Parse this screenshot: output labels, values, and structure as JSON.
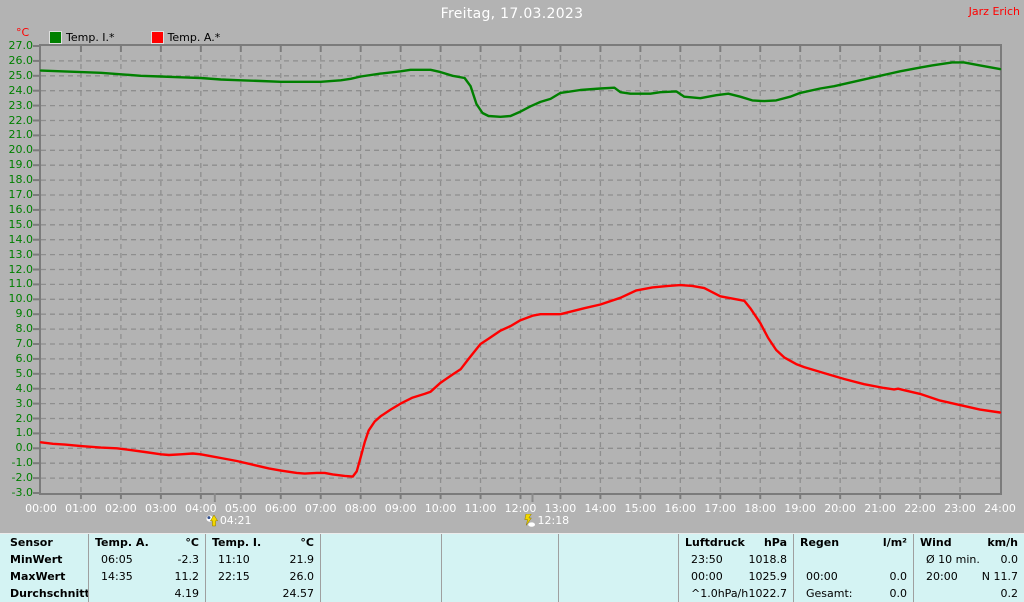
{
  "header": {
    "title": "Freitag, 17.03.2023",
    "user": "Jarz Erich"
  },
  "legend": {
    "axis_unit": "°C",
    "items": [
      {
        "label": "Temp. I.*",
        "color": "#008000"
      },
      {
        "label": "Temp. A.*",
        "color": "#ff0000"
      }
    ]
  },
  "chart_data": {
    "type": "line",
    "title": "Freitag, 17.03.2023",
    "ylabel": "°C",
    "ylim": [
      -3,
      27
    ],
    "ytick_step": 1.0,
    "xlim_hours": [
      0,
      24
    ],
    "grid": "dashed",
    "legend_position": "top-left",
    "y_tick_labels": [
      "27.0",
      "26.0",
      "25.0",
      "24.0",
      "23.0",
      "22.0",
      "21.0",
      "20.0",
      "19.0",
      "18.0",
      "17.0",
      "16.0",
      "15.0",
      "14.0",
      "13.0",
      "12.0",
      "11.0",
      "10.0",
      "9.0",
      "8.0",
      "7.0",
      "6.0",
      "5.0",
      "4.0",
      "3.0",
      "2.0",
      "1.0",
      "0.0",
      "-1.0",
      "-2.0",
      "-3.0"
    ],
    "x_tick_labels": [
      "00:00",
      "01:00",
      "02:00",
      "03:00",
      "04:00",
      "05:00",
      "06:00",
      "07:00",
      "08:00",
      "09:00",
      "10:00",
      "11:00",
      "12:00",
      "13:00",
      "14:00",
      "15:00",
      "16:00",
      "17:00",
      "18:00",
      "19:00",
      "20:00",
      "21:00",
      "22:00",
      "23:00",
      "24:00"
    ],
    "time_markers": [
      {
        "label": "04:21",
        "hour": 4.35
      },
      {
        "label": "12:18",
        "hour": 12.3
      }
    ],
    "series": [
      {
        "name": "Temp. I.*",
        "color": "#008000",
        "points": [
          [
            0,
            25.35
          ],
          [
            0.5,
            25.3
          ],
          [
            1,
            25.25
          ],
          [
            1.5,
            25.2
          ],
          [
            2,
            25.1
          ],
          [
            2.5,
            25.0
          ],
          [
            3,
            24.95
          ],
          [
            3.5,
            24.9
          ],
          [
            4,
            24.85
          ],
          [
            4.5,
            24.75
          ],
          [
            5,
            24.7
          ],
          [
            5.5,
            24.65
          ],
          [
            6,
            24.6
          ],
          [
            6.5,
            24.6
          ],
          [
            7,
            24.6
          ],
          [
            7.5,
            24.7
          ],
          [
            7.75,
            24.8
          ],
          [
            8,
            24.95
          ],
          [
            8.5,
            25.15
          ],
          [
            9,
            25.3
          ],
          [
            9.25,
            25.4
          ],
          [
            9.75,
            25.4
          ],
          [
            10,
            25.25
          ],
          [
            10.3,
            25.0
          ],
          [
            10.6,
            24.85
          ],
          [
            10.75,
            24.3
          ],
          [
            10.9,
            23.1
          ],
          [
            11.05,
            22.5
          ],
          [
            11.2,
            22.3
          ],
          [
            11.5,
            22.25
          ],
          [
            11.75,
            22.3
          ],
          [
            12,
            22.6
          ],
          [
            12.25,
            22.95
          ],
          [
            12.5,
            23.25
          ],
          [
            12.75,
            23.45
          ],
          [
            13,
            23.85
          ],
          [
            13.5,
            24.05
          ],
          [
            14,
            24.15
          ],
          [
            14.35,
            24.2
          ],
          [
            14.5,
            23.9
          ],
          [
            14.75,
            23.8
          ],
          [
            15.25,
            23.8
          ],
          [
            15.5,
            23.9
          ],
          [
            15.9,
            23.95
          ],
          [
            16.1,
            23.6
          ],
          [
            16.5,
            23.5
          ],
          [
            16.9,
            23.7
          ],
          [
            17.2,
            23.8
          ],
          [
            17.5,
            23.6
          ],
          [
            17.8,
            23.35
          ],
          [
            18.1,
            23.3
          ],
          [
            18.4,
            23.35
          ],
          [
            18.75,
            23.6
          ],
          [
            19,
            23.85
          ],
          [
            19.5,
            24.15
          ],
          [
            19.85,
            24.3
          ],
          [
            20.5,
            24.7
          ],
          [
            21,
            25.0
          ],
          [
            21.5,
            25.3
          ],
          [
            22,
            25.55
          ],
          [
            22.3,
            25.7
          ],
          [
            22.8,
            25.9
          ],
          [
            23.1,
            25.9
          ],
          [
            23.5,
            25.7
          ],
          [
            24,
            25.45
          ]
        ]
      },
      {
        "name": "Temp. A.*",
        "color": "#ff0000",
        "points": [
          [
            0,
            0.4
          ],
          [
            0.3,
            0.3
          ],
          [
            0.6,
            0.25
          ],
          [
            1,
            0.15
          ],
          [
            1.5,
            0.05
          ],
          [
            1.9,
            0.0
          ],
          [
            2.2,
            -0.1
          ],
          [
            2.6,
            -0.25
          ],
          [
            3,
            -0.4
          ],
          [
            3.2,
            -0.45
          ],
          [
            3.5,
            -0.4
          ],
          [
            3.8,
            -0.35
          ],
          [
            4,
            -0.4
          ],
          [
            4.2,
            -0.5
          ],
          [
            4.5,
            -0.65
          ],
          [
            4.9,
            -0.85
          ],
          [
            5.3,
            -1.1
          ],
          [
            5.7,
            -1.35
          ],
          [
            6,
            -1.5
          ],
          [
            6.4,
            -1.65
          ],
          [
            6.6,
            -1.7
          ],
          [
            6.9,
            -1.65
          ],
          [
            7.1,
            -1.65
          ],
          [
            7.3,
            -1.75
          ],
          [
            7.6,
            -1.85
          ],
          [
            7.8,
            -1.9
          ],
          [
            7.9,
            -1.55
          ],
          [
            8,
            -0.6
          ],
          [
            8.1,
            0.4
          ],
          [
            8.2,
            1.2
          ],
          [
            8.35,
            1.8
          ],
          [
            8.5,
            2.15
          ],
          [
            8.75,
            2.6
          ],
          [
            9,
            3.0
          ],
          [
            9.3,
            3.4
          ],
          [
            9.6,
            3.65
          ],
          [
            9.75,
            3.8
          ],
          [
            10,
            4.4
          ],
          [
            10.3,
            4.95
          ],
          [
            10.5,
            5.3
          ],
          [
            10.7,
            6.0
          ],
          [
            11,
            7.0
          ],
          [
            11.2,
            7.35
          ],
          [
            11.5,
            7.9
          ],
          [
            11.75,
            8.2
          ],
          [
            12,
            8.6
          ],
          [
            12.3,
            8.9
          ],
          [
            12.5,
            9.0
          ],
          [
            13,
            9.0
          ],
          [
            13.3,
            9.2
          ],
          [
            13.6,
            9.4
          ],
          [
            14,
            9.65
          ],
          [
            14.5,
            10.1
          ],
          [
            14.9,
            10.6
          ],
          [
            15.3,
            10.8
          ],
          [
            15.7,
            10.9
          ],
          [
            16,
            10.95
          ],
          [
            16.3,
            10.9
          ],
          [
            16.6,
            10.75
          ],
          [
            17,
            10.2
          ],
          [
            17.3,
            10.05
          ],
          [
            17.6,
            9.9
          ],
          [
            17.75,
            9.4
          ],
          [
            18,
            8.4
          ],
          [
            18.2,
            7.4
          ],
          [
            18.4,
            6.6
          ],
          [
            18.6,
            6.1
          ],
          [
            18.9,
            5.65
          ],
          [
            19.1,
            5.45
          ],
          [
            19.6,
            5.05
          ],
          [
            20.1,
            4.65
          ],
          [
            20.6,
            4.3
          ],
          [
            21.1,
            4.05
          ],
          [
            21.35,
            3.95
          ],
          [
            21.45,
            4.0
          ],
          [
            21.6,
            3.9
          ],
          [
            22,
            3.65
          ],
          [
            22.5,
            3.2
          ],
          [
            23,
            2.9
          ],
          [
            23.5,
            2.6
          ],
          [
            24,
            2.4
          ]
        ]
      }
    ]
  },
  "summary_table": {
    "row_labels": [
      "Sensor",
      "MinWert",
      "MaxWert",
      "Durchschnitt"
    ],
    "columns": [
      {
        "name": "Temp. A.",
        "unit": "°C",
        "rows": [
          [
            "06:05",
            "-2.3"
          ],
          [
            "14:35",
            "11.2"
          ],
          [
            "",
            "4.19"
          ]
        ]
      },
      {
        "name": "Temp. I.",
        "unit": "°C",
        "rows": [
          [
            "11:10",
            "21.9"
          ],
          [
            "22:15",
            "26.0"
          ],
          [
            "",
            "24.57"
          ]
        ]
      },
      {
        "name": "",
        "unit": "",
        "rows": [
          [
            "",
            ""
          ],
          [
            "",
            ""
          ],
          [
            "",
            ""
          ]
        ]
      },
      {
        "name": "",
        "unit": "",
        "rows": [
          [
            "",
            ""
          ],
          [
            "",
            ""
          ],
          [
            "",
            ""
          ]
        ]
      },
      {
        "name": "",
        "unit": "",
        "rows": [
          [
            "",
            ""
          ],
          [
            "",
            ""
          ],
          [
            "",
            ""
          ]
        ]
      },
      {
        "name": "Luftdruck",
        "unit": "hPa",
        "rows": [
          [
            "23:50",
            "1018.8"
          ],
          [
            "00:00",
            "1025.9"
          ],
          [
            "^1.0hPa/h",
            "1022.7"
          ]
        ]
      },
      {
        "name": "Regen",
        "unit": "l/m²",
        "rows": [
          [
            "",
            ""
          ],
          [
            "00:00",
            "0.0"
          ],
          [
            "Gesamt:",
            "0.0"
          ]
        ]
      },
      {
        "name": "Wind",
        "unit": "km/h",
        "rows": [
          [
            "Ø 10 min.",
            "0.0"
          ],
          [
            "20:00",
            "N 11.7"
          ],
          [
            "",
            "0.2"
          ]
        ]
      }
    ]
  },
  "colors": {
    "background": "#b3b3b3",
    "table_background": "#d4f3f3",
    "gridline": "#8e8e8e",
    "axis_frame": "#7b7b7b",
    "y_axis_labels": "#008000",
    "x_axis_labels": "#ffffff",
    "title_text": "#ffffff",
    "owner_text": "#ff0000"
  }
}
